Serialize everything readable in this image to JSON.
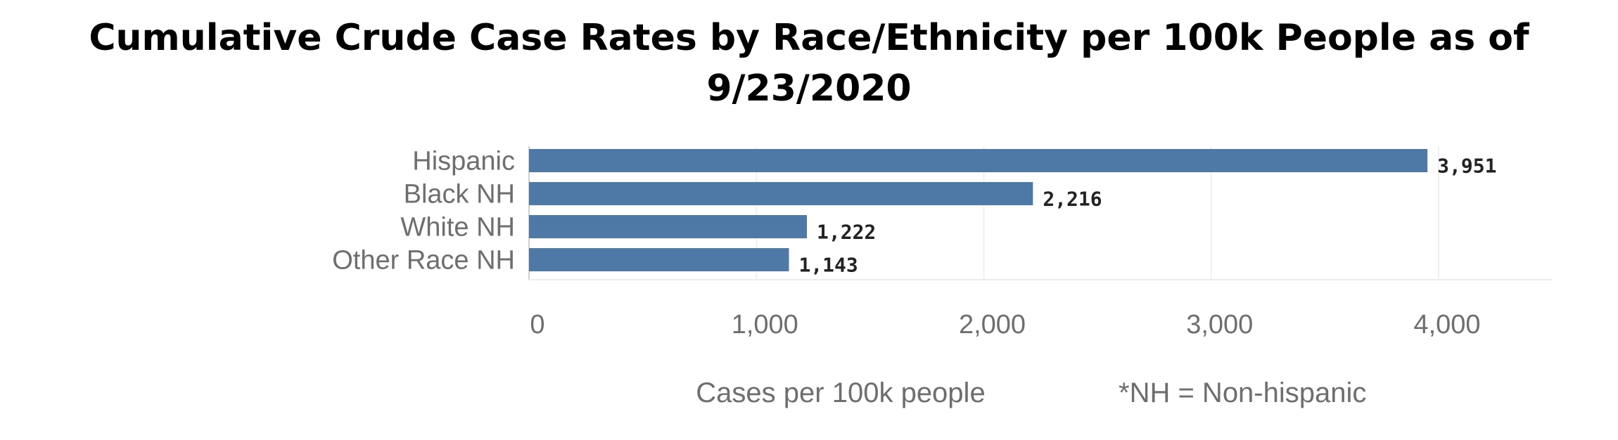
{
  "chart_data": {
    "type": "bar",
    "orientation": "horizontal",
    "title": "Cumulative Crude Case Rates by Race/Ethnicity per 100k People as of 9/23/2020",
    "categories": [
      "Hispanic",
      "Black NH",
      "White NH",
      "Other Race NH"
    ],
    "values": [
      3951,
      2216,
      1222,
      1143
    ],
    "value_labels": [
      "3,951",
      "2,216",
      "1,222",
      "1,143"
    ],
    "xlabel": "Cases per 100k people",
    "note": "*NH = Non-hispanic",
    "xlim": [
      0,
      4500
    ],
    "x_ticks": [
      0,
      1000,
      2000,
      3000,
      4000
    ],
    "x_tick_labels": [
      "0",
      "1,000",
      "2,000",
      "3,000",
      "4,000"
    ],
    "grid": true,
    "bar_color": "#4e79a7"
  }
}
